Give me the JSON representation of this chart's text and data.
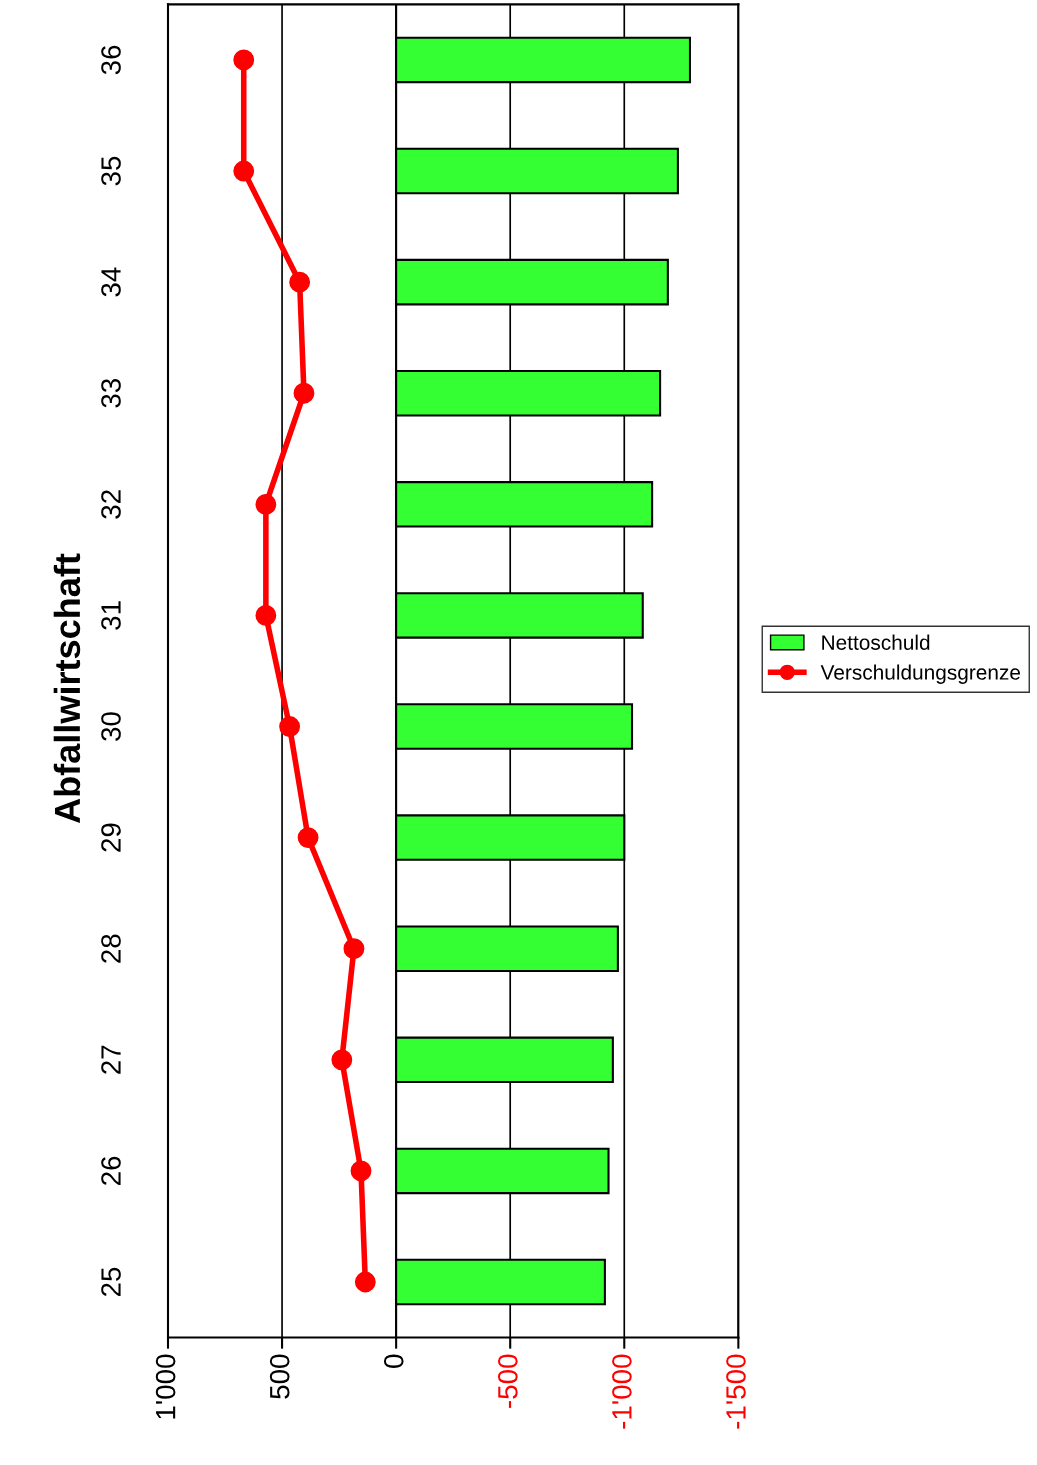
{
  "chart_data": {
    "type": "bar",
    "orientation": "horizontal",
    "title": "Abfallwirtschaft",
    "categories": [
      "36",
      "35",
      "34",
      "33",
      "32",
      "31",
      "30",
      "29",
      "28",
      "27",
      "26",
      "25"
    ],
    "series": [
      {
        "name": "Nettoschuld",
        "type": "bar",
        "color": "#33ff33",
        "values": [
          -1288,
          -1235,
          -1191,
          -1157,
          -1122,
          -1081,
          -1034,
          -1000,
          -972,
          -950,
          -931,
          -915
        ]
      },
      {
        "name": "Verschuldungsgrenze",
        "type": "line",
        "color": "#ff0000",
        "values": [
          668,
          668,
          423,
          404,
          571,
          571,
          467,
          386,
          185,
          238,
          154,
          135
        ]
      }
    ],
    "xlim": [
      1000,
      -1500
    ],
    "xticks": [
      {
        "value": 1000,
        "label": "1'000"
      },
      500,
      0,
      {
        "value": -500,
        "label": "-500"
      },
      {
        "value": -1000,
        "label": "-1'000"
      },
      {
        "value": -1500,
        "label": "-1'500"
      }
    ],
    "grid": "x",
    "legend": "right",
    "marker": "circle",
    "line_style": "solid"
  }
}
